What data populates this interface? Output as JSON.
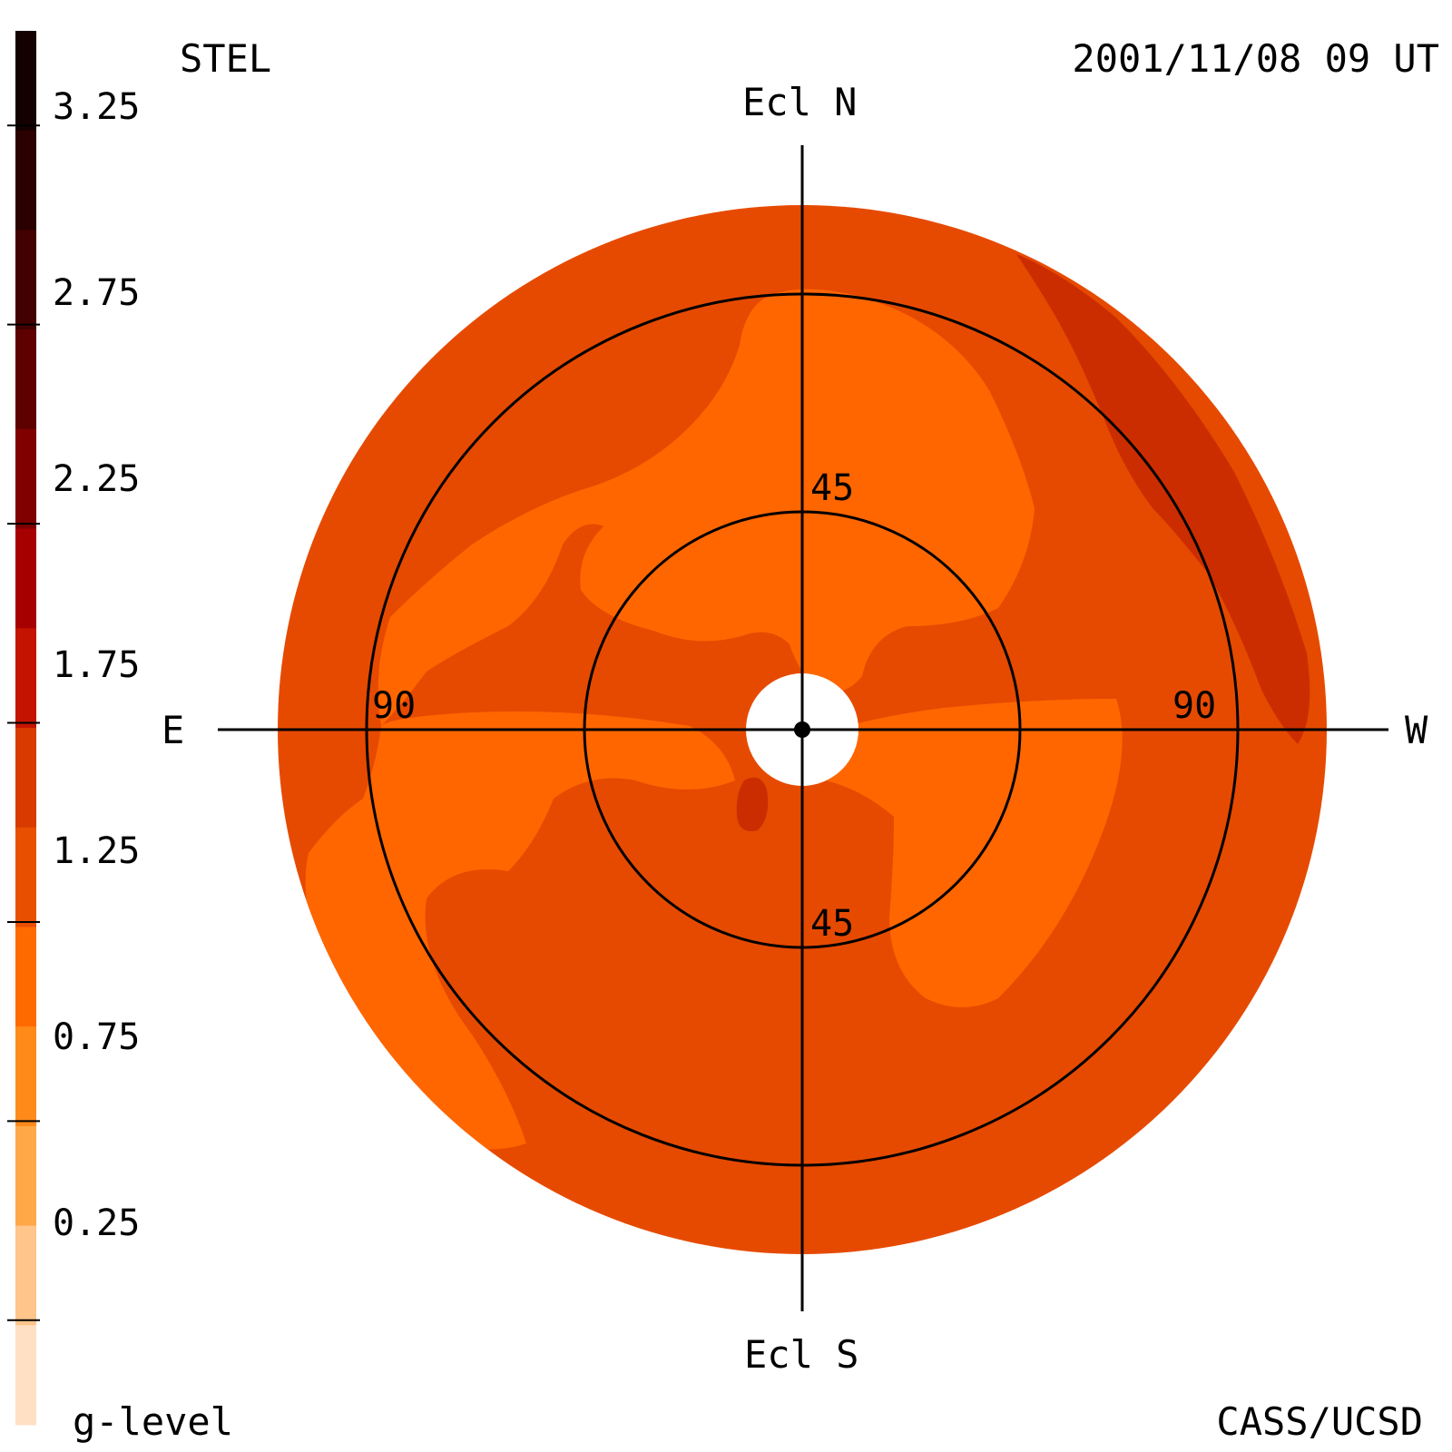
{
  "header": {
    "instrument": "STEL",
    "timestamp": "2001/11/08 09 UT",
    "footer_left": "g-level",
    "footer_right": "CASS/UCSD"
  },
  "directions": {
    "north": "Ecl N",
    "south": "Ecl S",
    "east": "E",
    "west": "W"
  },
  "ring_labels": {
    "inner_top": "45",
    "inner_bottom": "45",
    "outer_left": "90",
    "outer_right": "90"
  },
  "colorbar": {
    "tick_labels": [
      "3.25",
      "2.75",
      "2.25",
      "1.75",
      "1.25",
      "0.75",
      "0.25"
    ],
    "colors_top_to_bottom": [
      "#140000",
      "#2a0000",
      "#420000",
      "#5e0000",
      "#800000",
      "#a60000",
      "#c41400",
      "#d83a00",
      "#e85000",
      "#ff6a00",
      "#ff8a1a",
      "#ffa848",
      "#ffc58a",
      "#ffe0c4"
    ]
  },
  "map_colors": {
    "level_050_075": "#ff6600",
    "level_100_125": "#e64a00",
    "level_125_150": "#cc2d00",
    "sun_disk": "#ffffff",
    "grid": "#000000"
  }
}
